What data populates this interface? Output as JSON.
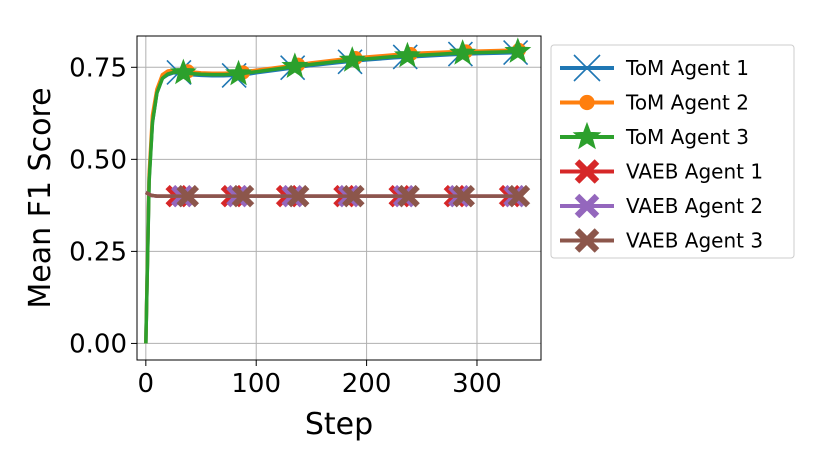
{
  "chart_data": {
    "type": "line",
    "xlabel": "Step",
    "ylabel": "Mean F1 Score",
    "xlim": [
      -8,
      358
    ],
    "ylim": [
      -0.045,
      0.835
    ],
    "xticks": [
      0,
      100,
      200,
      300
    ],
    "xtick_labels": [
      "0",
      "100",
      "200",
      "300"
    ],
    "yticks": [
      0.0,
      0.25,
      0.5,
      0.75
    ],
    "ytick_labels": [
      "0.00",
      "0.25",
      "0.50",
      "0.75"
    ],
    "grid": true,
    "legend_position": "outside-right",
    "series": [
      {
        "name": "ToM Agent 1",
        "color": "#1f77b4",
        "marker": "x",
        "x": [
          0,
          3,
          6,
          10,
          15,
          20,
          25,
          30,
          40,
          50,
          60,
          70,
          80,
          90,
          100,
          125,
          150,
          175,
          200,
          225,
          250,
          275,
          300,
          325,
          340
        ],
        "y": [
          0.0,
          0.45,
          0.6,
          0.68,
          0.72,
          0.73,
          0.735,
          0.735,
          0.73,
          0.728,
          0.727,
          0.727,
          0.728,
          0.73,
          0.735,
          0.745,
          0.755,
          0.763,
          0.77,
          0.776,
          0.78,
          0.784,
          0.787,
          0.789,
          0.79
        ],
        "marker_x": [
          30,
          80,
          133,
          185,
          235,
          285,
          335
        ],
        "marker_y": [
          0.736,
          0.728,
          0.749,
          0.765,
          0.778,
          0.786,
          0.79
        ]
      },
      {
        "name": "ToM Agent 2",
        "color": "#ff7f0e",
        "marker": "o",
        "x": [
          0,
          3,
          6,
          10,
          15,
          20,
          25,
          30,
          40,
          50,
          60,
          70,
          80,
          90,
          100,
          125,
          150,
          175,
          200,
          225,
          250,
          275,
          300,
          325,
          340
        ],
        "y": [
          0.0,
          0.46,
          0.62,
          0.69,
          0.73,
          0.74,
          0.742,
          0.742,
          0.738,
          0.735,
          0.734,
          0.734,
          0.735,
          0.738,
          0.742,
          0.752,
          0.762,
          0.771,
          0.778,
          0.784,
          0.789,
          0.792,
          0.794,
          0.796,
          0.797
        ],
        "marker_x": [
          38,
          88,
          138,
          190,
          240,
          290,
          338
        ],
        "marker_y": [
          0.739,
          0.736,
          0.757,
          0.775,
          0.786,
          0.793,
          0.797
        ]
      },
      {
        "name": "ToM Agent 3",
        "color": "#2ca02c",
        "marker": "*",
        "x": [
          0,
          3,
          6,
          10,
          15,
          20,
          25,
          30,
          40,
          50,
          60,
          70,
          80,
          90,
          100,
          125,
          150,
          175,
          200,
          225,
          250,
          275,
          300,
          325,
          340
        ],
        "y": [
          0.0,
          0.44,
          0.6,
          0.68,
          0.72,
          0.732,
          0.736,
          0.737,
          0.733,
          0.731,
          0.73,
          0.73,
          0.731,
          0.734,
          0.738,
          0.748,
          0.758,
          0.766,
          0.773,
          0.779,
          0.783,
          0.787,
          0.79,
          0.792,
          0.793
        ],
        "marker_x": [
          34,
          84,
          135,
          187,
          237,
          287,
          337
        ],
        "marker_y": [
          0.735,
          0.732,
          0.752,
          0.769,
          0.781,
          0.788,
          0.793
        ]
      },
      {
        "name": "VAEB Agent 1",
        "color": "#d62728",
        "marker": "X",
        "x": [
          0,
          5,
          10,
          20,
          40,
          80,
          120,
          160,
          200,
          240,
          280,
          320,
          340
        ],
        "y": [
          0.41,
          0.402,
          0.4,
          0.4,
          0.4,
          0.4,
          0.4,
          0.4,
          0.4,
          0.4,
          0.4,
          0.4,
          0.4
        ],
        "marker_x": [
          28,
          78,
          128,
          180,
          230,
          280,
          330
        ],
        "marker_y": [
          0.4,
          0.4,
          0.4,
          0.4,
          0.4,
          0.4,
          0.4
        ]
      },
      {
        "name": "VAEB Agent 2",
        "color": "#9467bd",
        "marker": "X",
        "x": [
          0,
          5,
          10,
          20,
          40,
          80,
          120,
          160,
          200,
          240,
          280,
          320,
          340
        ],
        "y": [
          0.41,
          0.402,
          0.4,
          0.4,
          0.4,
          0.4,
          0.4,
          0.4,
          0.4,
          0.4,
          0.4,
          0.4,
          0.4
        ],
        "marker_x": [
          33,
          83,
          133,
          184,
          234,
          284,
          334
        ],
        "marker_y": [
          0.4,
          0.4,
          0.4,
          0.4,
          0.4,
          0.4,
          0.4
        ]
      },
      {
        "name": "VAEB Agent 3",
        "color": "#8c564b",
        "marker": "X",
        "x": [
          0,
          5,
          10,
          20,
          40,
          80,
          120,
          160,
          200,
          240,
          280,
          320,
          340
        ],
        "y": [
          0.41,
          0.402,
          0.4,
          0.4,
          0.4,
          0.4,
          0.4,
          0.4,
          0.4,
          0.4,
          0.4,
          0.4,
          0.4
        ],
        "marker_x": [
          38,
          88,
          138,
          188,
          238,
          288,
          338
        ],
        "marker_y": [
          0.4,
          0.4,
          0.4,
          0.4,
          0.4,
          0.4,
          0.4
        ]
      }
    ]
  }
}
